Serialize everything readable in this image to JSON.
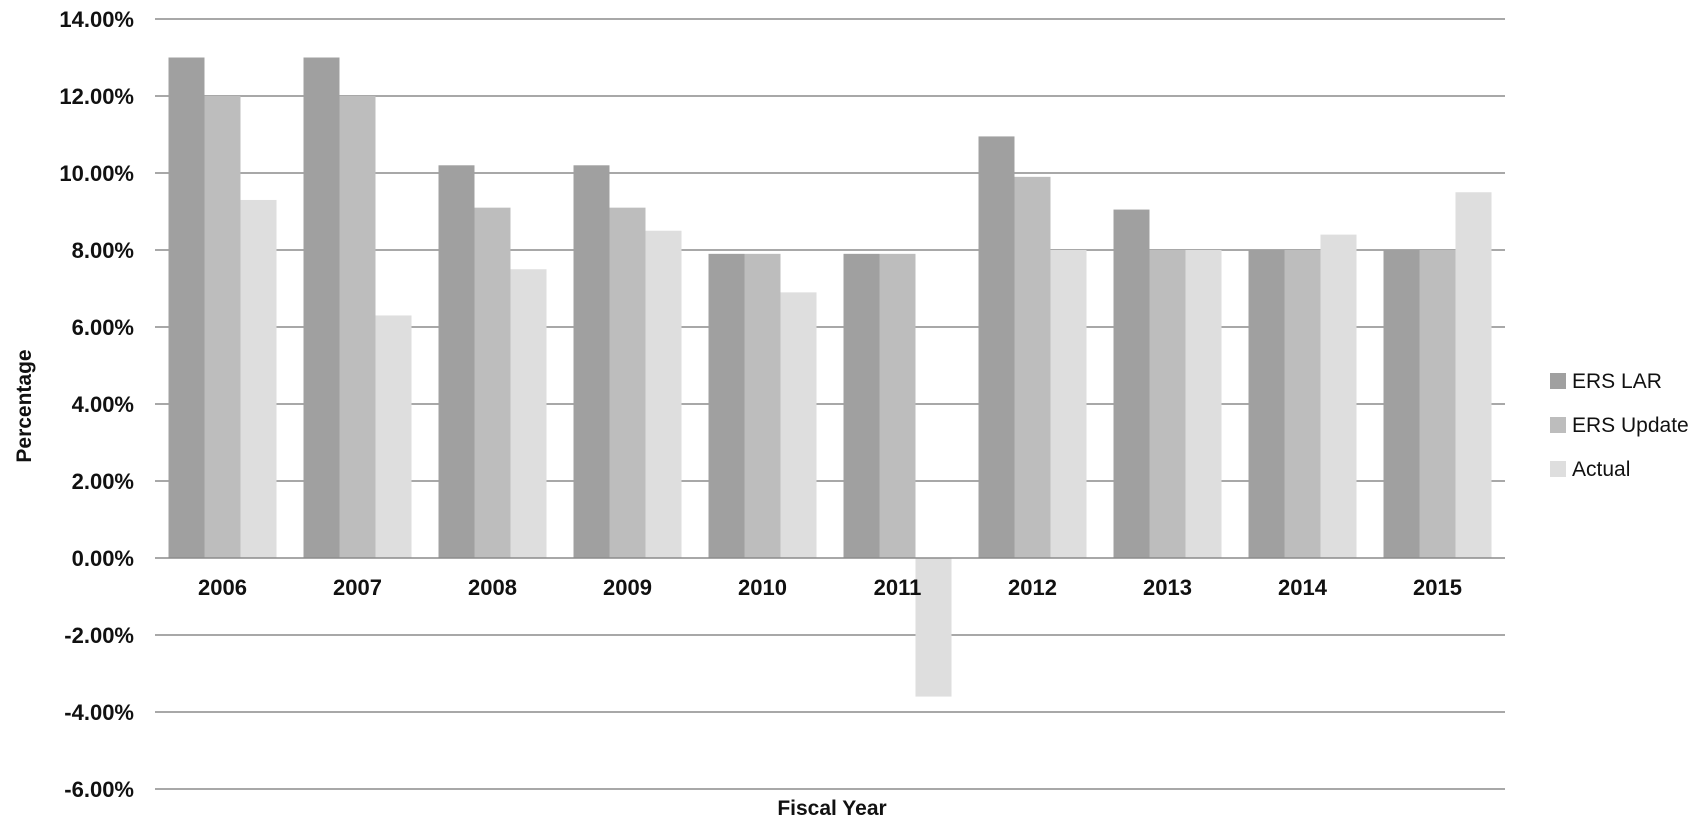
{
  "chart_data": {
    "type": "bar",
    "title": "",
    "xlabel": "Fiscal Year",
    "ylabel": "Percentage",
    "categories": [
      "2006",
      "2007",
      "2008",
      "2009",
      "2010",
      "2011",
      "2012",
      "2013",
      "2014",
      "2015"
    ],
    "series": [
      {
        "name": "ERS LAR",
        "color": "#a0a0a0",
        "values": [
          13.0,
          13.0,
          10.2,
          10.2,
          7.9,
          7.9,
          10.95,
          9.05,
          8.0,
          8.0
        ]
      },
      {
        "name": "ERS Update",
        "color": "#bdbdbd",
        "values": [
          12.0,
          12.0,
          9.1,
          9.1,
          7.9,
          7.9,
          9.9,
          8.0,
          8.0,
          8.0
        ]
      },
      {
        "name": "Actual",
        "color": "#dedede",
        "values": [
          9.3,
          6.3,
          7.5,
          8.5,
          6.9,
          -3.6,
          8.0,
          8.0,
          8.4,
          9.5
        ]
      }
    ],
    "ylim": [
      -6,
      14
    ],
    "yticks": [
      14,
      12,
      10,
      8,
      6,
      4,
      2,
      0,
      -2,
      -4,
      -6
    ],
    "ytick_labels": [
      "14.00%",
      "12.00%",
      "10.00%",
      "8.00%",
      "6.00%",
      "4.00%",
      "2.00%",
      "0.00%",
      "-2.00%",
      "-4.00%",
      "-6.00%"
    ],
    "grid": true,
    "gridline_color": "#8c8c8c",
    "legend_position": "right"
  }
}
